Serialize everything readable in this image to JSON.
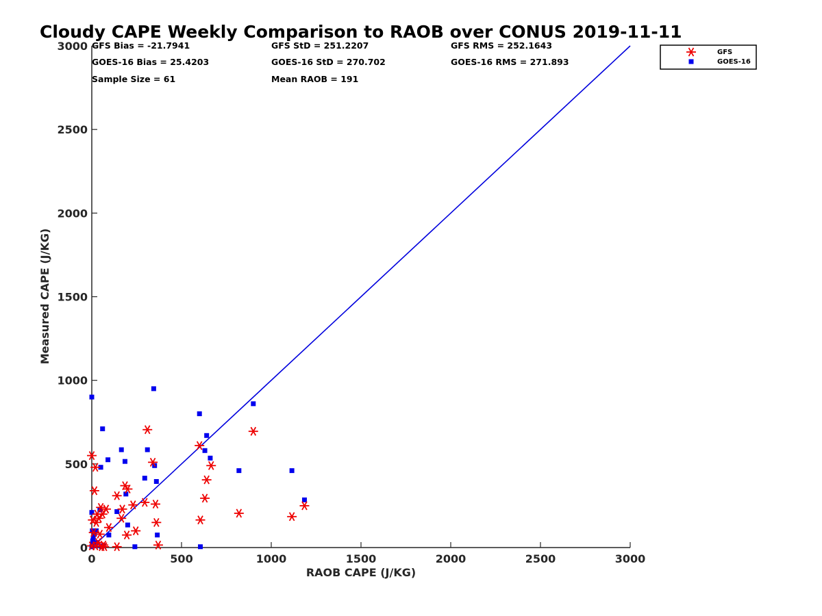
{
  "chart_data": {
    "type": "scatter",
    "title": "Cloudy CAPE Weekly Comparison to RAOB over CONUS 2019-11-11",
    "xlabel": "RAOB CAPE (J/KG)",
    "ylabel": "Measured CAPE (J/KG)",
    "xlim": [
      0,
      3000
    ],
    "ylim": [
      0,
      3000
    ],
    "xticks": [
      "0",
      "500",
      "1000",
      "1500",
      "2000",
      "2500",
      "3000"
    ],
    "yticks": [
      "0",
      "500",
      "1000",
      "1500",
      "2000",
      "2500",
      "3000"
    ],
    "grid": false,
    "legend_position": "top-right",
    "stats": [
      "GFS Bias = -21.7941",
      "GFS StD = 251.2207",
      "GFS RMS = 252.1643",
      "GOES-16 Bias = 25.4203",
      "GOES-16 StD = 270.702",
      "GOES-16 RMS = 271.893",
      "Sample Size = 61",
      "Mean RAOB = 191"
    ],
    "reference_line": {
      "from": [
        0,
        0
      ],
      "to": [
        3000,
        3000
      ],
      "color": "#0000dd"
    },
    "series": [
      {
        "name": "GFS",
        "marker": "asterisk",
        "color": "#ee0000",
        "points": [
          [
            0,
            550
          ],
          [
            0,
            10
          ],
          [
            5,
            165
          ],
          [
            10,
            90
          ],
          [
            15,
            340
          ],
          [
            20,
            480
          ],
          [
            20,
            10
          ],
          [
            25,
            150
          ],
          [
            30,
            200
          ],
          [
            35,
            30
          ],
          [
            40,
            175
          ],
          [
            45,
            80
          ],
          [
            50,
            240
          ],
          [
            55,
            5
          ],
          [
            60,
            200
          ],
          [
            65,
            15
          ],
          [
            70,
            5
          ],
          [
            80,
            230
          ],
          [
            95,
            120
          ],
          [
            140,
            310
          ],
          [
            140,
            5
          ],
          [
            165,
            175
          ],
          [
            170,
            230
          ],
          [
            185,
            370
          ],
          [
            195,
            75
          ],
          [
            200,
            350
          ],
          [
            230,
            255
          ],
          [
            245,
            100
          ],
          [
            295,
            270
          ],
          [
            310,
            705
          ],
          [
            340,
            510
          ],
          [
            355,
            260
          ],
          [
            360,
            150
          ],
          [
            370,
            15
          ],
          [
            600,
            610
          ],
          [
            605,
            165
          ],
          [
            630,
            295
          ],
          [
            640,
            405
          ],
          [
            665,
            490
          ],
          [
            820,
            205
          ],
          [
            900,
            695
          ],
          [
            1115,
            185
          ],
          [
            1185,
            250
          ]
        ]
      },
      {
        "name": "GOES-16",
        "marker": "square",
        "color": "#0000ee",
        "points": [
          [
            0,
            900
          ],
          [
            0,
            210
          ],
          [
            0,
            5
          ],
          [
            3,
            100
          ],
          [
            5,
            40
          ],
          [
            8,
            60
          ],
          [
            10,
            20
          ],
          [
            15,
            80
          ],
          [
            20,
            10
          ],
          [
            25,
            100
          ],
          [
            30,
            30
          ],
          [
            45,
            225
          ],
          [
            50,
            480
          ],
          [
            55,
            5
          ],
          [
            60,
            710
          ],
          [
            65,
            10
          ],
          [
            90,
            525
          ],
          [
            95,
            75
          ],
          [
            140,
            215
          ],
          [
            165,
            585
          ],
          [
            185,
            515
          ],
          [
            190,
            320
          ],
          [
            200,
            135
          ],
          [
            240,
            5
          ],
          [
            295,
            415
          ],
          [
            310,
            585
          ],
          [
            345,
            950
          ],
          [
            350,
            490
          ],
          [
            360,
            395
          ],
          [
            365,
            75
          ],
          [
            600,
            800
          ],
          [
            605,
            5
          ],
          [
            630,
            580
          ],
          [
            640,
            670
          ],
          [
            660,
            535
          ],
          [
            820,
            460
          ],
          [
            900,
            860
          ],
          [
            1115,
            460
          ],
          [
            1185,
            285
          ]
        ]
      }
    ]
  }
}
